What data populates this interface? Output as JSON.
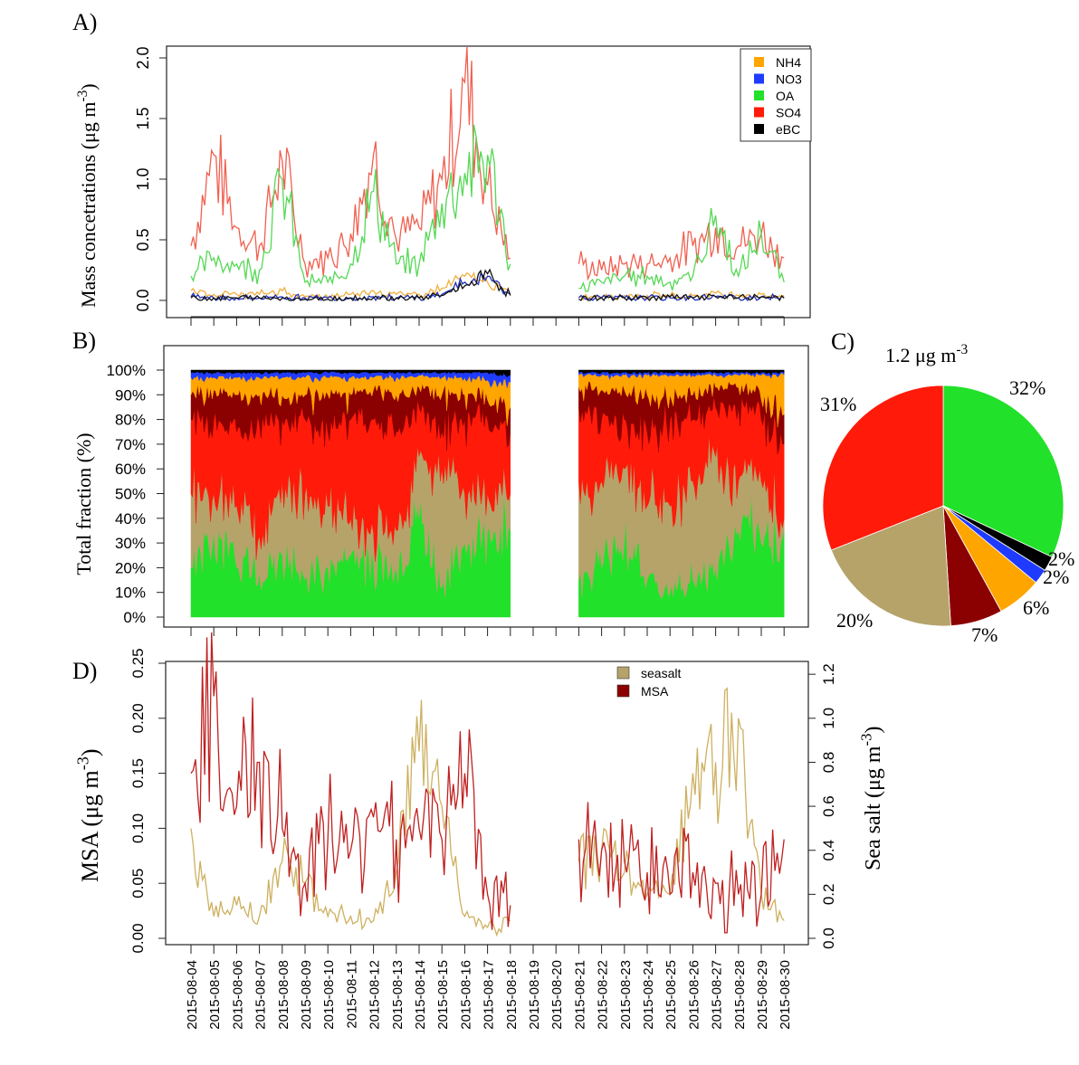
{
  "panel_labels": {
    "a": "A)",
    "b": "B)",
    "c": "C)",
    "d": "D)"
  },
  "colors": {
    "NH4": "#ffa500",
    "NO3": "#1f3bff",
    "OA": "#21e12a",
    "SO4": "#ff1a0a",
    "eBC": "#000000",
    "seasalt": "#b5a36a",
    "MSA": "#8b0000",
    "line_OA": "#55d855",
    "line_SO4": "#f06050",
    "line_NH4": "#f0b040",
    "line_NO3": "#2030c0",
    "line_eBC": "#111111",
    "line_MSA": "#c02020",
    "line_seasalt": "#cdb060"
  },
  "dates": [
    "2015-08-04",
    "2015-08-05",
    "2015-08-06",
    "2015-08-07",
    "2015-08-08",
    "2015-08-09",
    "2015-08-10",
    "2015-08-11",
    "2015-08-12",
    "2015-08-13",
    "2015-08-14",
    "2015-08-15",
    "2015-08-16",
    "2015-08-17",
    "2015-08-18",
    "2015-08-19",
    "2015-08-20",
    "2015-08-21",
    "2015-08-22",
    "2015-08-23",
    "2015-08-24",
    "2015-08-25",
    "2015-08-26",
    "2015-08-27",
    "2015-08-28",
    "2015-08-29",
    "2015-08-30"
  ],
  "chart_data": [
    {
      "type": "line",
      "panel": "A",
      "ylabel_main": "Mass concetrations (μg m",
      "ylabel_sup": "-3",
      "ylabel_close": ")",
      "ylim": [
        0,
        2.0
      ],
      "yticks": [
        "0.0",
        "0.5",
        "1.0",
        "1.5",
        "2.0"
      ],
      "legend_position": "top-right",
      "legend": [
        "NH4",
        "NO3",
        "OA",
        "SO4",
        "eBC"
      ],
      "x": [
        "2015-08-04",
        "2015-08-05",
        "2015-08-06",
        "2015-08-07",
        "2015-08-08",
        "2015-08-09",
        "2015-08-10",
        "2015-08-11",
        "2015-08-12",
        "2015-08-13",
        "2015-08-14",
        "2015-08-15",
        "2015-08-16",
        "2015-08-17",
        "2015-08-18",
        "2015-08-21",
        "2015-08-22",
        "2015-08-23",
        "2015-08-24",
        "2015-08-25",
        "2015-08-26",
        "2015-08-27",
        "2015-08-28",
        "2015-08-29",
        "2015-08-30"
      ],
      "series": [
        {
          "name": "SO4",
          "values": [
            0.45,
            1.2,
            0.6,
            0.45,
            1.15,
            0.3,
            0.35,
            0.55,
            1.2,
            0.5,
            0.6,
            1.0,
            1.8,
            0.95,
            0.35,
            0.3,
            0.25,
            0.3,
            0.3,
            0.35,
            0.45,
            0.6,
            0.45,
            0.55,
            0.35
          ]
        },
        {
          "name": "OA",
          "values": [
            0.2,
            0.35,
            0.3,
            0.25,
            1.0,
            0.15,
            0.15,
            0.3,
            0.9,
            0.3,
            0.3,
            0.8,
            1.05,
            1.2,
            0.3,
            0.1,
            0.15,
            0.2,
            0.2,
            0.15,
            0.2,
            0.7,
            0.2,
            0.55,
            0.15
          ]
        },
        {
          "name": "NH4",
          "values": [
            0.08,
            0.05,
            0.05,
            0.05,
            0.08,
            0.03,
            0.03,
            0.05,
            0.08,
            0.05,
            0.05,
            0.1,
            0.2,
            0.15,
            0.05,
            0.03,
            0.03,
            0.04,
            0.04,
            0.04,
            0.04,
            0.06,
            0.04,
            0.05,
            0.04
          ]
        },
        {
          "name": "NO3",
          "values": [
            0.03,
            0.02,
            0.02,
            0.02,
            0.03,
            0.02,
            0.02,
            0.02,
            0.03,
            0.02,
            0.02,
            0.05,
            0.15,
            0.2,
            0.05,
            0.02,
            0.02,
            0.02,
            0.02,
            0.02,
            0.02,
            0.03,
            0.02,
            0.03,
            0.02
          ]
        },
        {
          "name": "eBC",
          "values": [
            0.02,
            0.02,
            0.02,
            0.02,
            0.02,
            0.01,
            0.01,
            0.02,
            0.02,
            0.02,
            0.02,
            0.04,
            0.12,
            0.22,
            0.04,
            0.01,
            0.02,
            0.02,
            0.02,
            0.03,
            0.02,
            0.03,
            0.02,
            0.03,
            0.02
          ]
        }
      ]
    },
    {
      "type": "area",
      "panel": "B",
      "ylabel": "Total fraction (%)",
      "ylim": [
        0,
        100
      ],
      "yticks": [
        "0%",
        "10%",
        "20%",
        "30%",
        "40%",
        "50%",
        "60%",
        "70%",
        "80%",
        "90%",
        "100%"
      ],
      "x": [
        "2015-08-04",
        "2015-08-05",
        "2015-08-06",
        "2015-08-07",
        "2015-08-08",
        "2015-08-09",
        "2015-08-10",
        "2015-08-11",
        "2015-08-12",
        "2015-08-13",
        "2015-08-14",
        "2015-08-15",
        "2015-08-16",
        "2015-08-17",
        "2015-08-18",
        "2015-08-21",
        "2015-08-22",
        "2015-08-23",
        "2015-08-24",
        "2015-08-25",
        "2015-08-26",
        "2015-08-27",
        "2015-08-28",
        "2015-08-29",
        "2015-08-30"
      ],
      "stack_order": [
        "OA",
        "seasalt",
        "SO4",
        "MSA",
        "NH4",
        "NO3",
        "eBC"
      ],
      "series": [
        {
          "name": "OA",
          "values": [
            20,
            35,
            20,
            18,
            25,
            15,
            20,
            25,
            22,
            20,
            40,
            12,
            30,
            35,
            35,
            15,
            20,
            30,
            15,
            10,
            15,
            20,
            35,
            30,
            35
          ]
        },
        {
          "name": "seasalt",
          "values": [
            30,
            15,
            25,
            15,
            30,
            35,
            25,
            15,
            12,
            15,
            25,
            48,
            20,
            15,
            15,
            40,
            35,
            30,
            30,
            35,
            40,
            45,
            20,
            25,
            5
          ]
        },
        {
          "name": "SO4",
          "values": [
            30,
            30,
            30,
            45,
            25,
            30,
            30,
            40,
            46,
            40,
            20,
            15,
            30,
            30,
            25,
            30,
            25,
            20,
            30,
            35,
            25,
            20,
            30,
            25,
            30
          ]
        },
        {
          "name": "MSA",
          "values": [
            10,
            12,
            15,
            12,
            10,
            10,
            15,
            10,
            12,
            15,
            8,
            15,
            10,
            8,
            10,
            8,
            12,
            12,
            15,
            10,
            10,
            8,
            8,
            8,
            12
          ]
        },
        {
          "name": "NH4",
          "values": [
            7,
            5,
            7,
            7,
            7,
            7,
            7,
            7,
            5,
            7,
            5,
            7,
            7,
            8,
            10,
            5,
            6,
            6,
            8,
            8,
            8,
            5,
            5,
            10,
            16
          ]
        },
        {
          "name": "NO3",
          "values": [
            2,
            2,
            2,
            2,
            2,
            2,
            2,
            2,
            2,
            2,
            1,
            2,
            2,
            3,
            3,
            1,
            1,
            1,
            1,
            1,
            1,
            1,
            1,
            1,
            1
          ]
        },
        {
          "name": "eBC",
          "values": [
            1,
            1,
            1,
            1,
            1,
            1,
            1,
            1,
            1,
            1,
            1,
            1,
            1,
            1,
            2,
            1,
            1,
            1,
            1,
            1,
            1,
            1,
            1,
            1,
            1
          ]
        }
      ]
    },
    {
      "type": "pie",
      "panel": "C",
      "title_main": "1.2 μg m",
      "title_sup": "-3",
      "slices": [
        {
          "name": "OA",
          "value": 32,
          "label": "32%"
        },
        {
          "name": "eBC",
          "value": 2,
          "label": "2%"
        },
        {
          "name": "NO3",
          "value": 2,
          "label": "2%"
        },
        {
          "name": "NH4",
          "value": 6,
          "label": "6%"
        },
        {
          "name": "MSA",
          "value": 7,
          "label": "7%"
        },
        {
          "name": "seasalt",
          "value": 20,
          "label": "20%"
        },
        {
          "name": "SO4",
          "value": 31,
          "label": "31%"
        }
      ]
    },
    {
      "type": "line",
      "panel": "D",
      "ylabel_left_main": "MSA (μg m",
      "ylabel_left_sup": "-3",
      "ylabel_left_close": ")",
      "ylabel_right_main": "Sea salt (μg m",
      "ylabel_right_sup": "-3",
      "ylabel_right_close": ")",
      "ylim_left": [
        0,
        0.25
      ],
      "ylim_right": [
        0,
        1.25
      ],
      "yticks_left": [
        "0.00",
        "0.05",
        "0.10",
        "0.15",
        "0.20",
        "0.25"
      ],
      "yticks_right": [
        "0.0",
        "0.2",
        "0.4",
        "0.6",
        "0.8",
        "1.0",
        "1.2"
      ],
      "legend_position": "top",
      "legend": [
        "seasalt",
        "MSA"
      ],
      "x": [
        "2015-08-04",
        "2015-08-05",
        "2015-08-06",
        "2015-08-07",
        "2015-08-08",
        "2015-08-09",
        "2015-08-10",
        "2015-08-11",
        "2015-08-12",
        "2015-08-13",
        "2015-08-14",
        "2015-08-15",
        "2015-08-16",
        "2015-08-17",
        "2015-08-18",
        "2015-08-21",
        "2015-08-22",
        "2015-08-23",
        "2015-08-24",
        "2015-08-25",
        "2015-08-26",
        "2015-08-27",
        "2015-08-28",
        "2015-08-29",
        "2015-08-30"
      ],
      "series": [
        {
          "name": "MSA",
          "axis": "left",
          "values": [
            0.15,
            0.22,
            0.12,
            0.16,
            0.1,
            0.05,
            0.09,
            0.08,
            0.11,
            0.09,
            0.1,
            0.09,
            0.15,
            0.04,
            0.03,
            0.09,
            0.08,
            0.07,
            0.06,
            0.04,
            0.06,
            0.05,
            0.04,
            0.04,
            0.09
          ]
        },
        {
          "name": "seasalt",
          "axis": "right",
          "values": [
            0.5,
            0.1,
            0.15,
            0.1,
            0.35,
            0.25,
            0.1,
            0.1,
            0.08,
            0.3,
            0.85,
            0.6,
            0.1,
            0.05,
            0.08,
            0.35,
            0.4,
            0.3,
            0.2,
            0.2,
            0.75,
            0.8,
            1.0,
            0.2,
            0.08
          ]
        }
      ]
    }
  ]
}
